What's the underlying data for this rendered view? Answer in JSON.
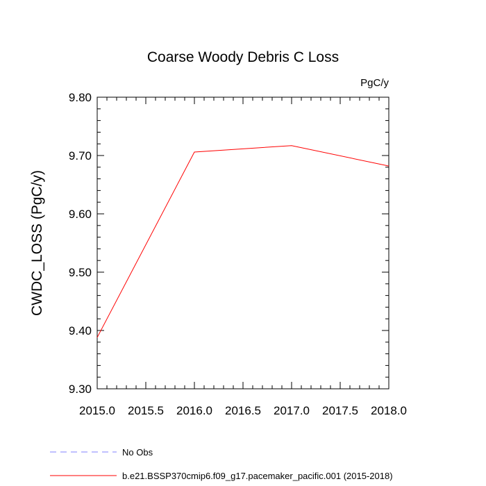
{
  "chart_data": {
    "type": "line",
    "title": "Coarse Woody Debris C Loss",
    "units": "PgC/y",
    "ylabel": "CWDC_LOSS  (PgC/y)",
    "xlabel": "",
    "xlim": [
      2015.0,
      2018.0
    ],
    "ylim": [
      9.3,
      9.8
    ],
    "xticks": [
      "2015.0",
      "2015.5",
      "2016.0",
      "2016.5",
      "2017.0",
      "2017.5",
      "2018.0"
    ],
    "yticks": [
      "9.30",
      "9.40",
      "9.50",
      "9.60",
      "9.70",
      "9.80"
    ],
    "grid": false,
    "legend_placement": "bottom-left",
    "series": [
      {
        "name": "b.e21.BSSP370cmip6.f09_g17.pacemaker_pacific.001 (2015-2018)",
        "color": "#ff0000",
        "style": "solid",
        "x": [
          2015,
          2016,
          2017,
          2018
        ],
        "y": [
          9.388,
          9.706,
          9.717,
          9.682
        ]
      }
    ],
    "legend": [
      {
        "label": "No Obs",
        "color": "#8080ff",
        "style": "dashed"
      },
      {
        "label": "b.e21.BSSP370cmip6.f09_g17.pacemaker_pacific.001 (2015-2018)",
        "color": "#ff0000",
        "style": "solid"
      }
    ]
  }
}
